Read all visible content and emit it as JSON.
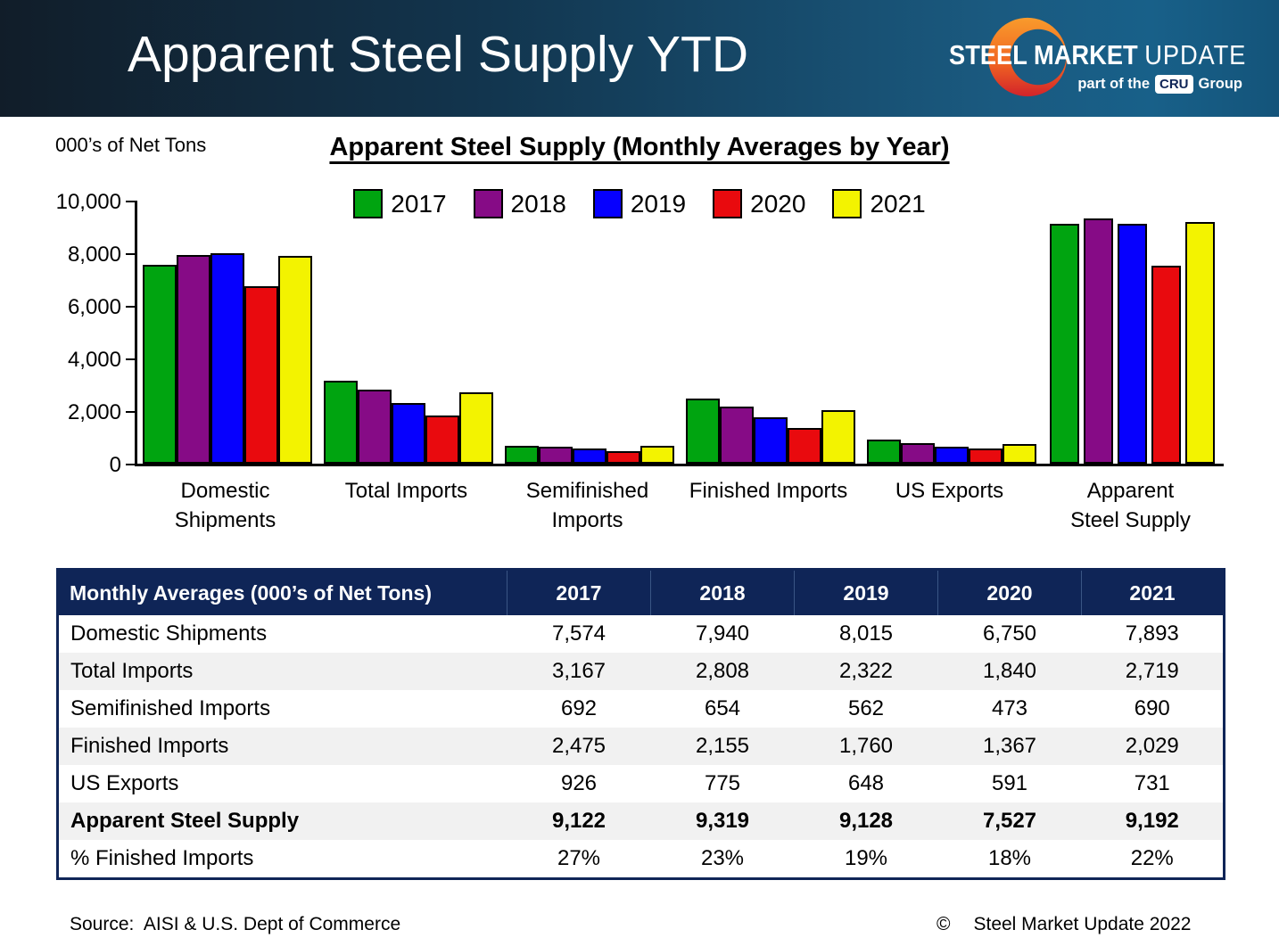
{
  "header": {
    "title": "Apparent Steel Supply YTD",
    "logo": {
      "brand_bold": "STEEL MARKET",
      "brand_light": "UPDATE",
      "tagline_prefix": "part of the",
      "tagline_badge": "CRU",
      "tagline_suffix": "Group"
    }
  },
  "chart": {
    "units_label": "000’s of Net Tons",
    "title": "Apparent Steel Supply (Monthly Averages by Year)"
  },
  "chart_data": {
    "type": "bar",
    "title": "Apparent Steel Supply (Monthly Averages by Year)",
    "ylabel": "000’s of Net Tons",
    "ylim": [
      0,
      10000
    ],
    "yticks": [
      "0",
      "2,000",
      "4,000",
      "6,000",
      "8,000",
      "10,000"
    ],
    "grid": false,
    "legend_position": "top",
    "categories": [
      "Domestic Shipments",
      "Total Imports",
      "Semifinished Imports",
      "Finished Imports",
      "US Exports",
      "Apparent Steel Supply"
    ],
    "category_labels": [
      [
        "Domestic",
        "Shipments"
      ],
      [
        "Total Imports"
      ],
      [
        "Semifinished",
        "Imports"
      ],
      [
        "Finished Imports"
      ],
      [
        "US Exports"
      ],
      [
        "Apparent",
        "Steel Supply"
      ]
    ],
    "series": [
      {
        "name": "2017",
        "color": "#00A410",
        "values": [
          7574,
          3167,
          692,
          2475,
          926,
          9122
        ]
      },
      {
        "name": "2018",
        "color": "#860B86",
        "values": [
          7940,
          2808,
          654,
          2155,
          775,
          9319
        ]
      },
      {
        "name": "2019",
        "color": "#0600FE",
        "values": [
          8015,
          2322,
          562,
          1760,
          648,
          9128
        ]
      },
      {
        "name": "2020",
        "color": "#E90A0E",
        "values": [
          6750,
          1840,
          473,
          1367,
          591,
          7527
        ]
      },
      {
        "name": "2021",
        "color": "#F3F300",
        "values": [
          7893,
          2719,
          690,
          2029,
          731,
          9192
        ]
      }
    ]
  },
  "table": {
    "header": [
      "Monthly Averages (000’s of Net Tons)",
      "2017",
      "2018",
      "2019",
      "2020",
      "2021"
    ],
    "rows": [
      {
        "label": "Domestic Shipments",
        "values": [
          "7,574",
          "7,940",
          "8,015",
          "6,750",
          "7,893"
        ],
        "bold": false
      },
      {
        "label": "Total Imports",
        "values": [
          "3,167",
          "2,808",
          "2,322",
          "1,840",
          "2,719"
        ],
        "bold": false
      },
      {
        "label": "Semifinished Imports",
        "values": [
          "692",
          "654",
          "562",
          "473",
          "690"
        ],
        "bold": false
      },
      {
        "label": "Finished Imports",
        "values": [
          "2,475",
          "2,155",
          "1,760",
          "1,367",
          "2,029"
        ],
        "bold": false
      },
      {
        "label": "US Exports",
        "values": [
          "926",
          "775",
          "648",
          "591",
          "731"
        ],
        "bold": false
      },
      {
        "label": "Apparent Steel Supply",
        "values": [
          "9,122",
          "9,319",
          "9,128",
          "7,527",
          "9,192"
        ],
        "bold": true
      },
      {
        "label": "% Finished Imports",
        "values": [
          "27%",
          "23%",
          "19%",
          "18%",
          "22%"
        ],
        "bold": false
      }
    ]
  },
  "footer": {
    "source": "Source:  AISI & U.S. Dept of Commerce",
    "copyright_symbol": "©",
    "copyright_text": "Steel Market Update 2022"
  },
  "colors": {
    "header_gradient_dark": "#111D29",
    "header_gradient_light": "#1A5A80",
    "table_header_bg": "#0F2557",
    "row_stripe": "#F1F1F1",
    "bar_border": "#000000",
    "logo_orange": "#F89B2C",
    "logo_red": "#D2232A"
  }
}
